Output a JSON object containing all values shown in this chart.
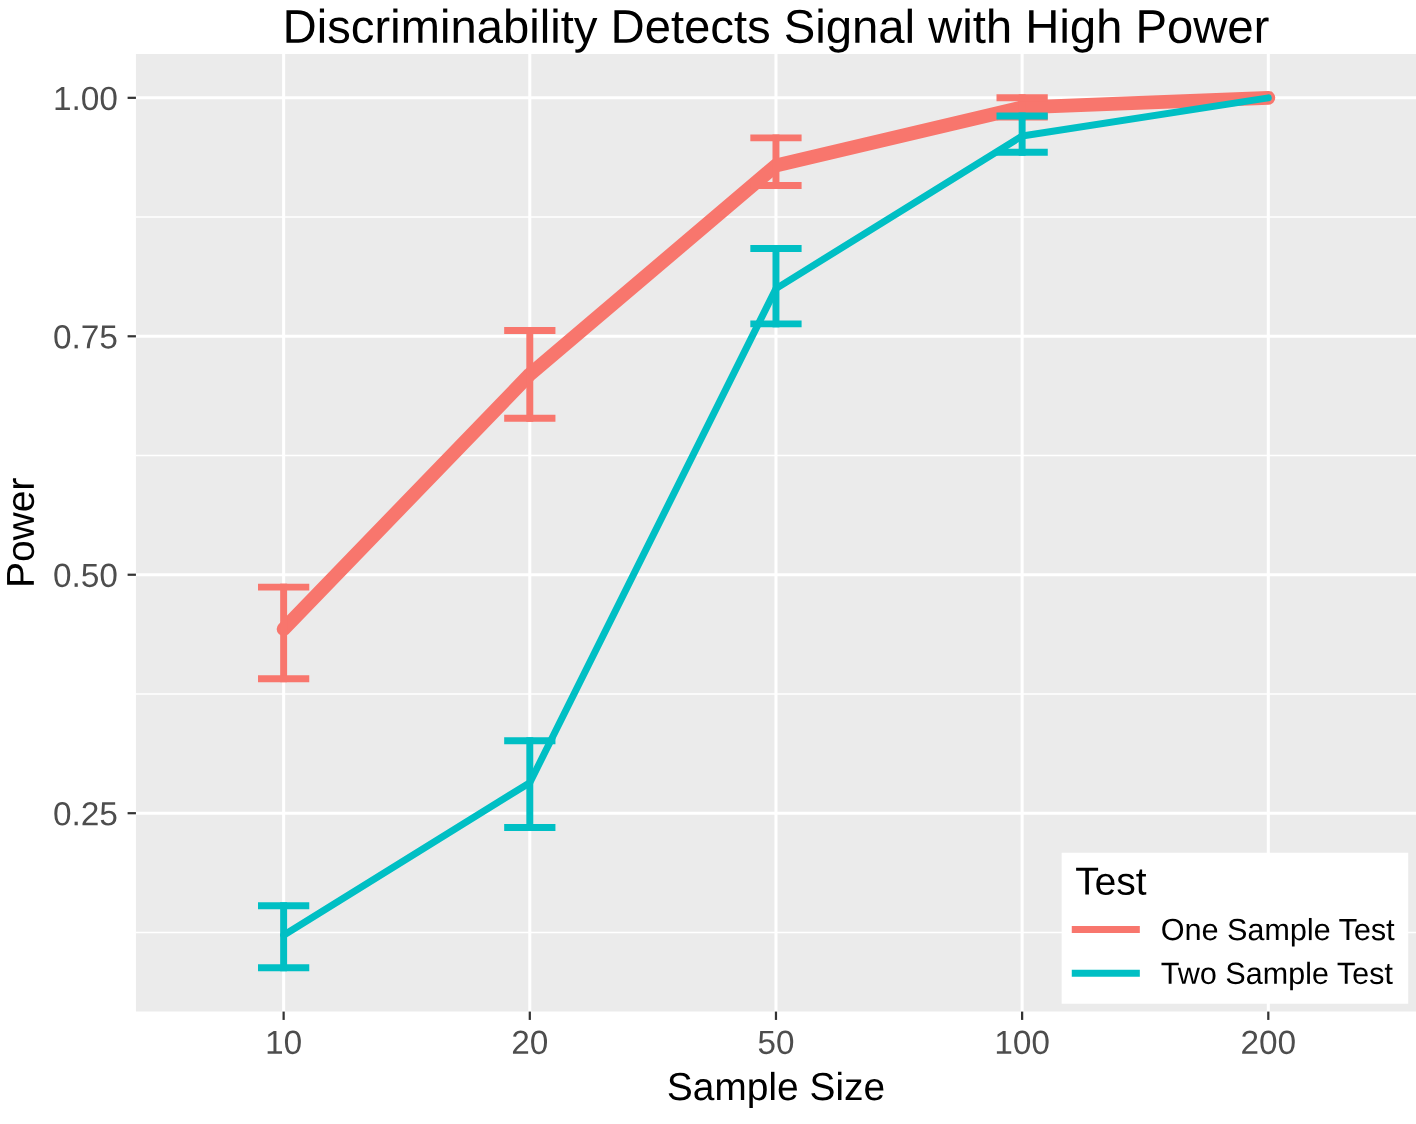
{
  "chart_data": {
    "type": "line",
    "title": "Discriminability Detects Signal with High Power",
    "xlabel": "Sample Size",
    "ylabel": "Power",
    "legend_title": "Test",
    "categories": [
      "10",
      "20",
      "50",
      "100",
      "200"
    ],
    "series": [
      {
        "name": "One Sample Test",
        "color": "#f8766d",
        "values": [
          0.443,
          0.71,
          0.929,
          0.99,
          1.0
        ],
        "errors": [
          [
            0.391,
            0.487
          ],
          [
            0.664,
            0.756
          ],
          [
            0.908,
            0.958
          ],
          [
            0.98,
            1.0
          ],
          null
        ]
      },
      {
        "name": "Two Sample Test",
        "color": "#00bfc4",
        "values": [
          0.122,
          0.282,
          0.8,
          0.96,
          1.0
        ],
        "errors": [
          [
            0.088,
            0.153
          ],
          [
            0.235,
            0.326
          ],
          [
            0.763,
            0.842
          ],
          [
            0.943,
            0.981
          ],
          null
        ]
      }
    ],
    "ylim": [
      0.042,
      1.046
    ],
    "yticks": [
      {
        "value": 0.25,
        "label": "0.25"
      },
      {
        "value": 0.5,
        "label": "0.50"
      },
      {
        "value": 0.75,
        "label": "0.75"
      },
      {
        "value": 1.0,
        "label": "1.00"
      }
    ],
    "grid": true,
    "legend": "bottom right",
    "marker": "none",
    "line_style": "solid"
  }
}
